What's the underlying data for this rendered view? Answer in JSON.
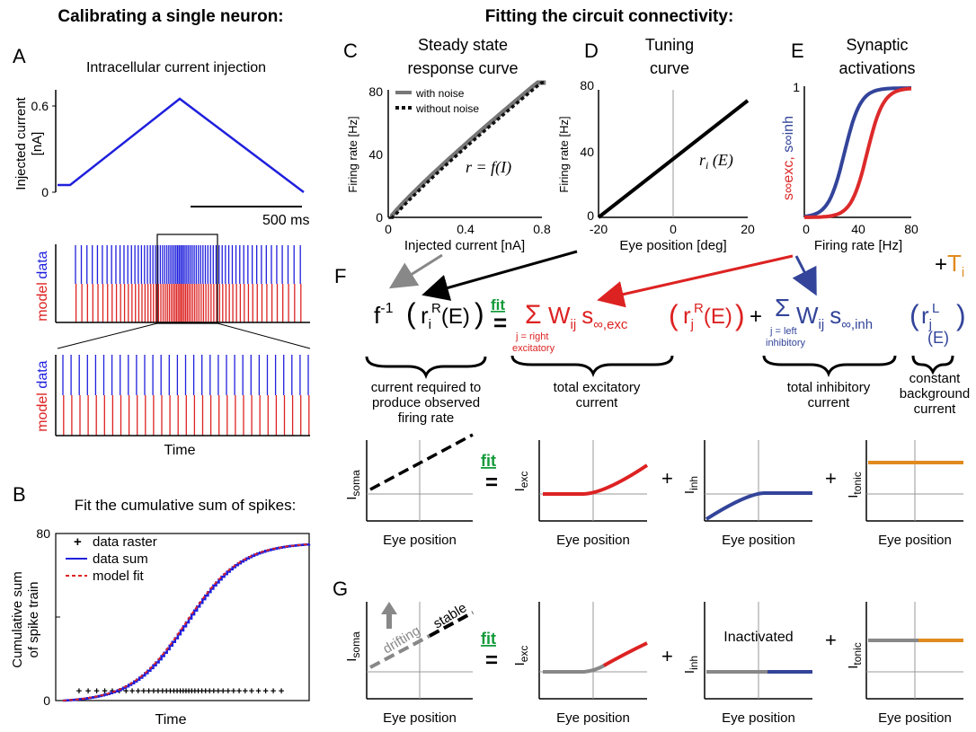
{
  "colors": {
    "blue": "#1f1fdd",
    "red": "#dd2222",
    "navy": "#33449a",
    "crimson": "#dd2a2a",
    "green": "#139a3a",
    "orange": "#e08a1f",
    "gray": "#888888"
  },
  "headings": {
    "left": "Calibrating a single neuron:",
    "right": "Fitting the circuit connectivity:"
  },
  "panel_letters": {
    "A": "A",
    "B": "B",
    "C": "C",
    "D": "D",
    "E": "E",
    "F": "F",
    "G": "G"
  },
  "panelA": {
    "title": "Intracellular current injection",
    "ylabel_line1": "Injected current",
    "ylabel_line2": "[nA]",
    "ytick_top": "0.6",
    "ytick_bottom": "0",
    "scalebar_label": "500 ms",
    "raster_label_data": "data",
    "raster_label_model": "model",
    "time_label": "Time",
    "trace_peak_fraction": 0.64
  },
  "panelB": {
    "title": "Fit the cumulative sum of spikes:",
    "ylabel_line1": "Cumulative sum",
    "ylabel_line2": "of spike train",
    "ytick_top": "80",
    "ytick_bottom": "0",
    "xlabel": "Time",
    "legend": [
      "data raster",
      "data sum",
      "model fit"
    ]
  },
  "panelC": {
    "title_line1": "Steady state",
    "title_line2": "response curve",
    "ylabel": "Firing rate [Hz]",
    "xlabel": "Injected current [nA]",
    "yticks": [
      "80",
      "40",
      "0"
    ],
    "xticks": [
      "0",
      "0.4",
      "0.8"
    ],
    "legend": [
      "with noise",
      "without noise"
    ],
    "equation": "r = f(I)"
  },
  "panelD": {
    "title_line1": "Tuning",
    "title_line2": "curve",
    "ylabel": "Firing rate [Hz]",
    "xlabel": "Eye position [deg]",
    "yticks": [
      "80",
      "40",
      "0"
    ],
    "xticks": [
      "-20",
      "0",
      "20"
    ],
    "equation_r": "r",
    "equation_i": "i",
    "equation_e": " (E)"
  },
  "panelE": {
    "title_line1": "Synaptic",
    "title_line2": "activations",
    "ylabel_exc": "s∞exc,",
    "ylabel_inh": " s∞inh",
    "xlabel": "Firing rate [Hz]",
    "ytick_top": "1",
    "xticks": [
      "0",
      "40",
      "80"
    ]
  },
  "equation": {
    "lhs": "f",
    "lhs_sup": "-1",
    "lhs_r": "r",
    "lhs_sub": "i",
    "lhs_supR": "R",
    "lhs_end": "(E)",
    "fit": "fit",
    "equals": "=",
    "sigma": "Σ",
    "W": "W",
    "ij": "ij",
    "s_exc": "s",
    "exc_sub": "∞,exc",
    "r": "r",
    "j": "j",
    "supR": "R",
    "supL": "L",
    "E": "(E)",
    "s_inh": "s",
    "inh_sub": "∞,inh",
    "plus": "+",
    "T": "T",
    "T_sub": "i",
    "exc_sum_label1": "j = right",
    "exc_sum_label2": "excitatory",
    "inh_sum_label1": "j = left",
    "inh_sum_label2": "inhibitory"
  },
  "brace_labels": {
    "current": [
      "current required to",
      "produce observed",
      "firing rate"
    ],
    "exc": [
      "total excitatory",
      "current"
    ],
    "inh": [
      "total inhibitory",
      "current"
    ],
    "tonic": [
      "constant",
      "background",
      "current"
    ]
  },
  "small_plots": {
    "xlabel": "Eye position",
    "I": "I",
    "soma": "soma",
    "exc": "exc",
    "inh": "inh",
    "tonic": "tonic",
    "fit": "fit",
    "equals": "=",
    "plus": "+"
  },
  "panelG": {
    "drifting": "drifting",
    "stable": "stable",
    "inactivated": "Inactivated"
  }
}
